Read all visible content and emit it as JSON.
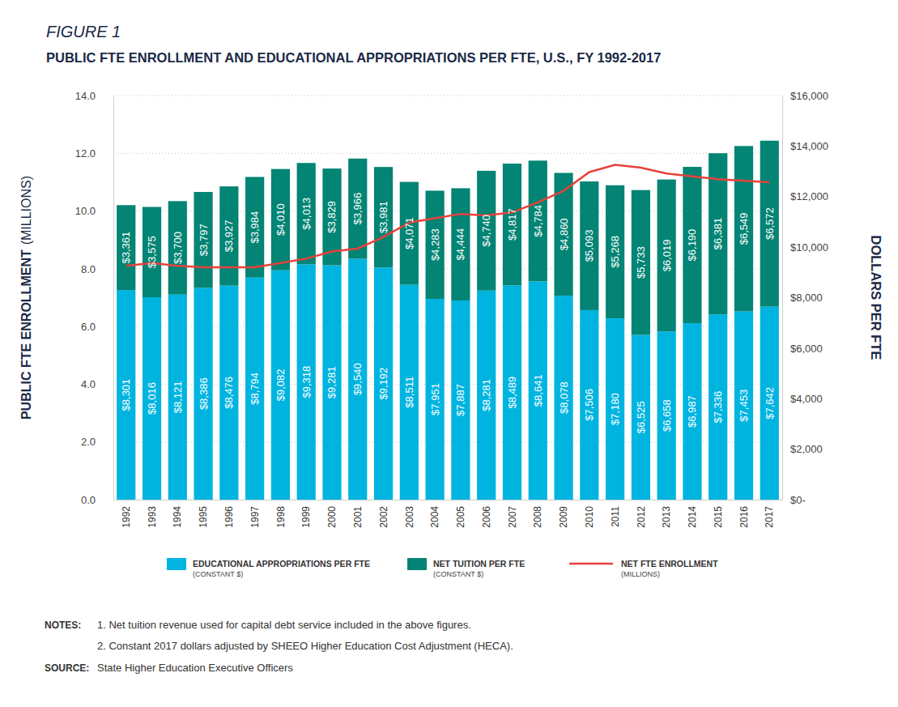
{
  "chart_data": {
    "type": "bar",
    "stacked": true,
    "grid": true,
    "data_labels": true,
    "legend": "bottom",
    "figure_label": "FIGURE 1",
    "title": "PUBLIC FTE ENROLLMENT AND EDUCATIONAL APPROPRIATIONS PER FTE, U.S., FY 1992-2017",
    "y_label": "PUBLIC FTE ENROLLMENT",
    "y_label_unit": "(MILLIONS)",
    "y2_label": "DOLLARS PER FTE",
    "categories": [
      "1992",
      "1993",
      "1994",
      "1995",
      "1996",
      "1997",
      "1998",
      "1999",
      "2000",
      "2001",
      "2002",
      "2003",
      "2004",
      "2005",
      "2006",
      "2007",
      "2008",
      "2009",
      "2010",
      "2011",
      "2012",
      "2013",
      "2014",
      "2015",
      "2016",
      "2017"
    ],
    "ylim": [
      0,
      14
    ],
    "yticks": [
      {
        "value": 0,
        "label": "0.0"
      },
      {
        "value": 2,
        "label": "2.0"
      },
      {
        "value": 4,
        "label": "4.0"
      },
      {
        "value": 6,
        "label": "6.0"
      },
      {
        "value": 8,
        "label": "8.0"
      },
      {
        "value": 10,
        "label": "10.0"
      },
      {
        "value": 12,
        "label": "12.0"
      },
      {
        "value": 14,
        "label": "14.0"
      }
    ],
    "y2lim": [
      0,
      16000
    ],
    "y2ticks": [
      {
        "value": 0,
        "label": "$0-"
      },
      {
        "value": 2000,
        "label": "$2,000"
      },
      {
        "value": 4000,
        "label": "$4,000"
      },
      {
        "value": 6000,
        "label": "$6,000"
      },
      {
        "value": 8000,
        "label": "$8,000"
      },
      {
        "value": 10000,
        "label": "$10,000"
      },
      {
        "value": 12000,
        "label": "$12,000"
      },
      {
        "value": 14000,
        "label": "$14,000"
      },
      {
        "value": 16000,
        "label": "$16,000"
      }
    ],
    "series": [
      {
        "name": "EDUCATIONAL APPROPRIATIONS PER FTE",
        "sublabel": "(CONSTANT $)",
        "type": "bar",
        "axis": "y2",
        "color": "#00b4e0",
        "values": [
          8301,
          8016,
          8121,
          8386,
          8476,
          8794,
          9082,
          9318,
          9281,
          9540,
          9192,
          8511,
          7951,
          7887,
          8281,
          8489,
          8641,
          8078,
          7506,
          7180,
          6525,
          6658,
          6987,
          7336,
          7453,
          7642
        ],
        "value_labels": [
          "$8,301",
          "$8,016",
          "$8,121",
          "$8,386",
          "$8,476",
          "$8,794",
          "$9,082",
          "$9,318",
          "$9,281",
          "$9,540",
          "$9,192",
          "$8,511",
          "$7,951",
          "$7,887",
          "$8,281",
          "$8,489",
          "$8,641",
          "$8,078",
          "$7,506",
          "$7,180",
          "$6,525",
          "$6,658",
          "$6,987",
          "$7,336",
          "$7,453",
          "$7,642"
        ]
      },
      {
        "name": "NET TUITION PER FTE",
        "sublabel": "(CONSTANT $)",
        "type": "bar",
        "axis": "y2",
        "color": "#038474",
        "values": [
          3361,
          3575,
          3700,
          3797,
          3927,
          3984,
          4010,
          4013,
          3829,
          3966,
          3981,
          4071,
          4283,
          4444,
          4740,
          4817,
          4784,
          4860,
          5093,
          5268,
          5733,
          6019,
          6190,
          6381,
          6549,
          6572
        ],
        "value_labels": [
          "$3,361",
          "$3,575",
          "$3,700",
          "$3,797",
          "$3,927",
          "$3,984",
          "$4,010",
          "$4,013",
          "$3,829",
          "$3,966",
          "$3,981",
          "$4,071",
          "$4,283",
          "$4,444",
          "$4,740",
          "$4,817",
          "$4,784",
          "$4,860",
          "$5,093",
          "$5,268",
          "$5,733",
          "$6,019",
          "$6,190",
          "$6,381",
          "$6,549",
          "$6,572"
        ]
      },
      {
        "name": "NET FTE ENROLLMENT",
        "sublabel": "(MILLIONS)",
        "type": "line",
        "axis": "y",
        "color": "#e8413a",
        "values": [
          8.1,
          8.2,
          8.1,
          8.05,
          8.05,
          8.05,
          8.2,
          8.35,
          8.6,
          8.7,
          9.1,
          9.6,
          9.75,
          9.9,
          9.85,
          9.95,
          10.3,
          10.7,
          11.35,
          11.6,
          11.5,
          11.3,
          11.2,
          11.1,
          11.05,
          11.0
        ]
      }
    ],
    "notes_label": "NOTES:",
    "notes": [
      "1. Net tuition revenue used for capital debt service included in the above figures.",
      "2. Constant 2017 dollars adjusted by SHEEO Higher Education Cost Adjustment (HECA)."
    ],
    "source_label": "SOURCE:",
    "source": "State Higher Education Executive Officers"
  }
}
